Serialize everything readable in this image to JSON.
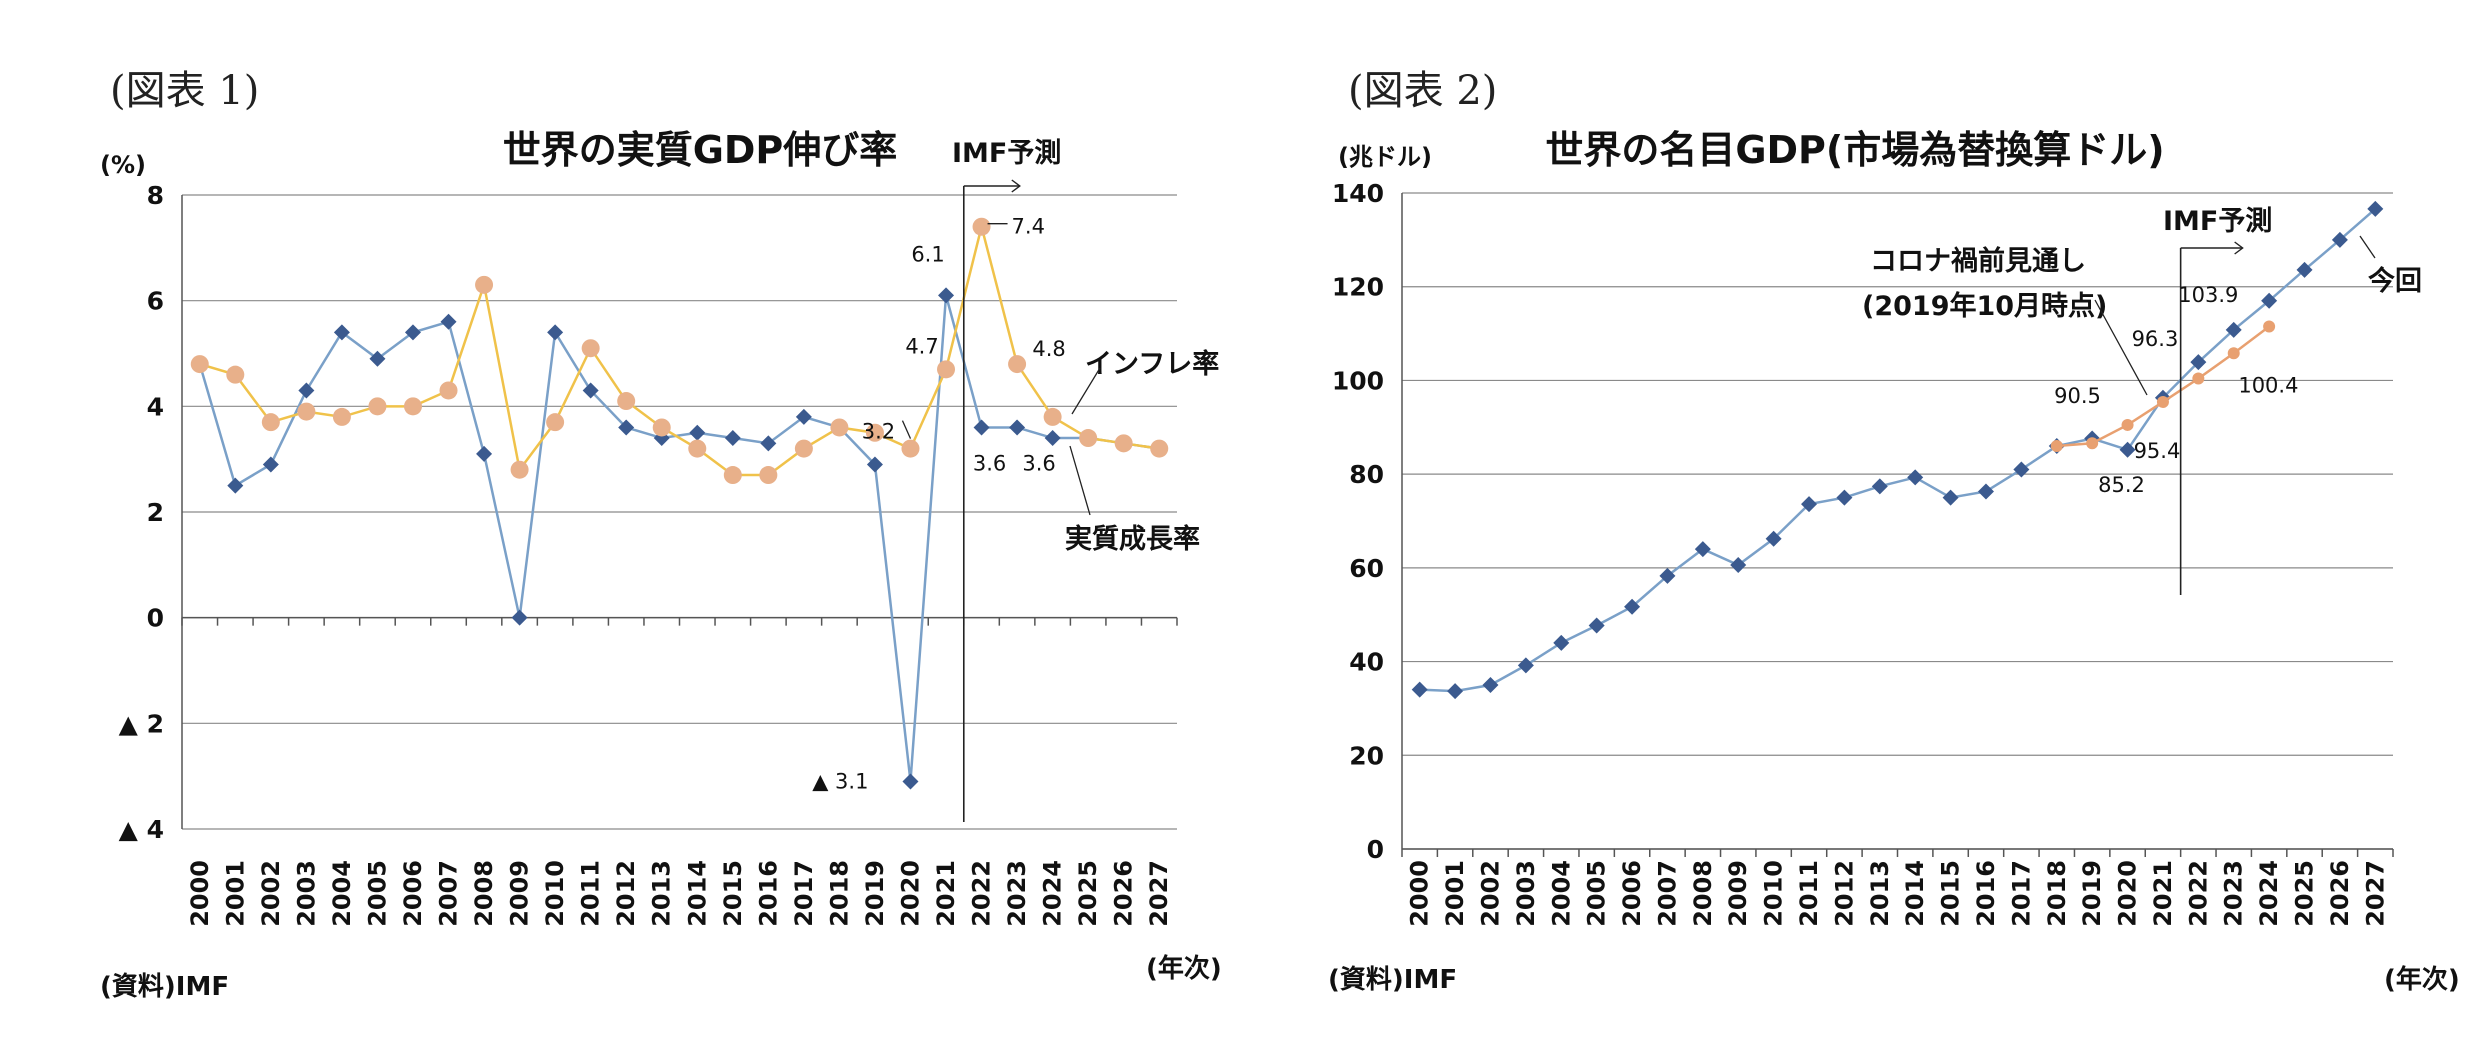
{
  "figures": [
    {
      "label": "(図表 1)"
    },
    {
      "label": "(図表 2)"
    }
  ],
  "chart_data": [
    {
      "type": "line",
      "title": "世界の実質GDP伸び率",
      "ylabel": "(%)",
      "xlabel": "(年次)",
      "source": "(資料)IMF",
      "ylim": [
        -4,
        8
      ],
      "yticks": [
        {
          "value": 8,
          "label": "8"
        },
        {
          "value": 6,
          "label": "6"
        },
        {
          "value": 4,
          "label": "4"
        },
        {
          "value": 2,
          "label": "2"
        },
        {
          "value": 0,
          "label": "0"
        },
        {
          "value": -2,
          "label": "▲ 2"
        },
        {
          "value": -4,
          "label": "▲ 4"
        }
      ],
      "grid": true,
      "x": [
        "2000",
        "2001",
        "2002",
        "2003",
        "2004",
        "2005",
        "2006",
        "2007",
        "2008",
        "2009",
        "2010",
        "2011",
        "2012",
        "2013",
        "2014",
        "2015",
        "2016",
        "2017",
        "2018",
        "2019",
        "2020",
        "2021",
        "2022",
        "2023",
        "2024",
        "2025",
        "2026",
        "2027"
      ],
      "series": [
        {
          "name": "実質成長率",
          "color": "#3b5a8f",
          "line_color": "#7aa0c8",
          "marker": "diamond",
          "values": [
            4.8,
            2.5,
            2.9,
            4.3,
            5.4,
            4.9,
            5.4,
            5.6,
            3.1,
            0.0,
            5.4,
            4.3,
            3.6,
            3.4,
            3.5,
            3.4,
            3.3,
            3.8,
            3.6,
            2.9,
            -3.1,
            6.1,
            3.6,
            3.6,
            3.4,
            3.4,
            3.3,
            3.2
          ]
        },
        {
          "name": "インフレ率",
          "color": "#e8b08a",
          "line_color": "#f0c24a",
          "marker": "circle",
          "values": [
            4.8,
            4.6,
            3.7,
            3.9,
            3.8,
            4.0,
            4.0,
            4.3,
            6.3,
            2.8,
            3.7,
            5.1,
            4.1,
            3.6,
            3.2,
            2.7,
            2.7,
            3.2,
            3.6,
            3.5,
            3.2,
            4.7,
            7.4,
            4.8,
            3.8,
            3.4,
            3.3,
            3.2
          ]
        }
      ],
      "annotations": [
        {
          "text": "6.1",
          "x": "2021",
          "y": 6.1
        },
        {
          "text": "7.4",
          "x": "2022",
          "y": 7.4
        },
        {
          "text": "4.7",
          "x": "2021",
          "y": 4.7
        },
        {
          "text": "3.2",
          "x": "2020",
          "y": 3.2
        },
        {
          "text": "4.8",
          "x": "2023",
          "y": 4.8
        },
        {
          "text": "3.6",
          "x": "2022",
          "y": 3.6
        },
        {
          "text": "3.6",
          "x": "2023",
          "y": 3.6
        },
        {
          "text": "▲ 3.1",
          "x": "2020",
          "y": -3.1
        }
      ],
      "forecast_marker": {
        "text": "IMF予測",
        "x": "2021.5"
      }
    },
    {
      "type": "line",
      "title": "世界の名目GDP(市場為替換算ドル)",
      "ylabel": "(兆ドル)",
      "xlabel": "(年次)",
      "source": "(資料)IMF",
      "ylim": [
        0,
        140
      ],
      "yticks": [
        {
          "value": 140,
          "label": "140"
        },
        {
          "value": 120,
          "label": "120"
        },
        {
          "value": 100,
          "label": "100"
        },
        {
          "value": 80,
          "label": "80"
        },
        {
          "value": 60,
          "label": "60"
        },
        {
          "value": 40,
          "label": "40"
        },
        {
          "value": 20,
          "label": "20"
        },
        {
          "value": 0,
          "label": "0"
        }
      ],
      "grid": true,
      "x": [
        "2000",
        "2001",
        "2002",
        "2003",
        "2004",
        "2005",
        "2006",
        "2007",
        "2008",
        "2009",
        "2010",
        "2011",
        "2012",
        "2013",
        "2014",
        "2015",
        "2016",
        "2017",
        "2018",
        "2019",
        "2020",
        "2021",
        "2022",
        "2023",
        "2024",
        "2025",
        "2026",
        "2027"
      ],
      "series": [
        {
          "name": "今回",
          "color": "#3b5a8f",
          "line_color": "#7aa0c8",
          "marker": "diamond",
          "values": [
            34.0,
            33.7,
            35.0,
            39.2,
            44.0,
            47.7,
            51.7,
            58.3,
            64.0,
            60.6,
            66.2,
            73.6,
            75.0,
            77.4,
            79.3,
            75.0,
            76.3,
            81.0,
            86.0,
            87.6,
            85.2,
            96.3,
            103.9,
            110.8,
            117.0,
            123.6,
            130.0,
            136.6
          ]
        },
        {
          "name": "コロナ禍前見通し(2019年10月時点)",
          "color": "#e8a070",
          "line_color": "#e8a070",
          "marker": "circle",
          "x": [
            "2018",
            "2019",
            "2020",
            "2021",
            "2022",
            "2023",
            "2024"
          ],
          "values": [
            86.0,
            86.6,
            90.5,
            95.4,
            100.4,
            105.8,
            111.5
          ]
        }
      ],
      "annotations": [
        {
          "text": "90.5",
          "x": "2020",
          "y": 90.5
        },
        {
          "text": "96.3",
          "x": "2021",
          "y": 96.3
        },
        {
          "text": "103.9",
          "x": "2022",
          "y": 103.9
        },
        {
          "text": "100.4",
          "x": "2022",
          "y": 100.4
        },
        {
          "text": "85.2",
          "x": "2020",
          "y": 85.2
        },
        {
          "text": "95.4",
          "x": "2021",
          "y": 95.4
        }
      ],
      "forecast_marker": {
        "text": "IMF予測",
        "x": "2021.5"
      },
      "legend_labels": {
        "current": "今回",
        "precovid_line1": "コロナ禍前見通し",
        "precovid_line2": "(2019年10月時点)"
      }
    }
  ]
}
